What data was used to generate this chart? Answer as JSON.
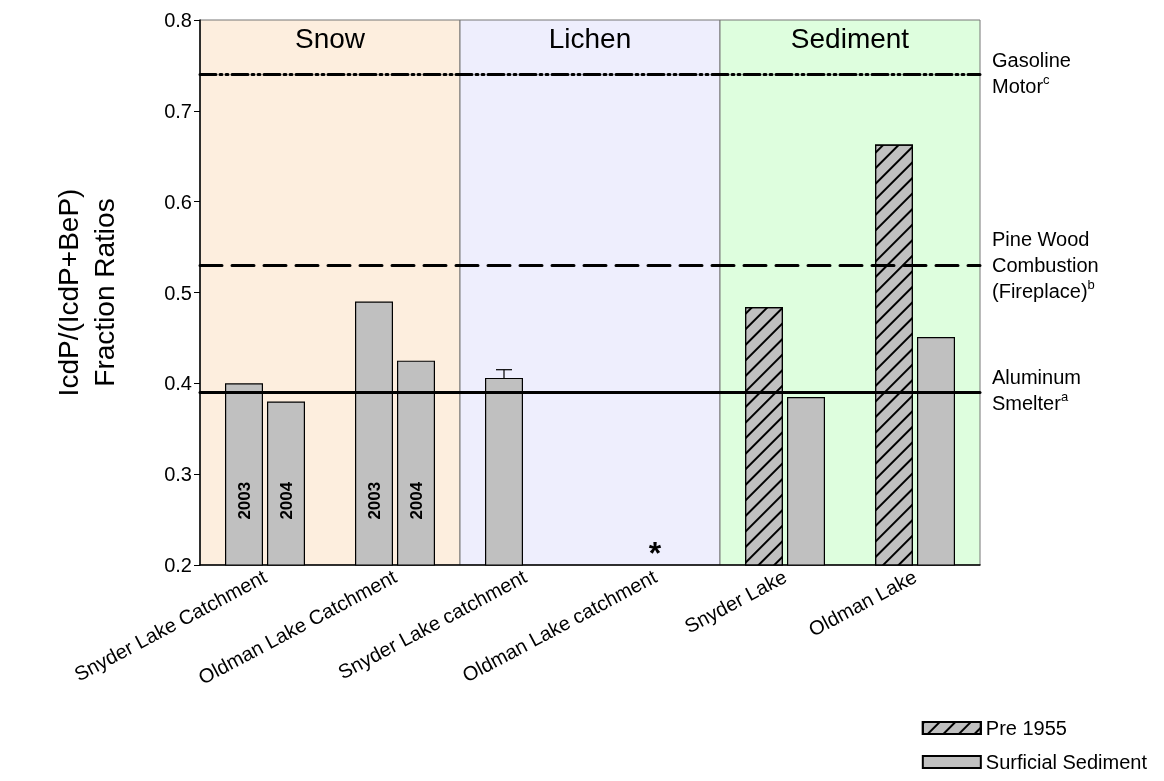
{
  "chart_data": {
    "type": "bar",
    "ylabel": "IcdP/(IcdP+BeP)\nFraction Ratios",
    "categories": [
      "Snyder Lake Catchment",
      "Oldman Lake Catchment",
      "Snyder Lake catchment",
      "Oldman Lake catchment",
      "Snyder Lake",
      "Oldman Lake"
    ],
    "series": [
      {
        "name": "2003",
        "color": "#c0c0c0",
        "values": [
          0.4,
          0.49,
          null,
          null,
          null,
          null
        ]
      },
      {
        "name": "2004",
        "color": "#c0c0c0",
        "values": [
          0.38,
          0.425,
          null,
          null,
          null,
          null
        ]
      },
      {
        "color": "#c0c0c0",
        "values": [
          null,
          null,
          0.406,
          null,
          null,
          null
        ],
        "errors": [
          null,
          null,
          [
            0.406,
            0.415
          ],
          null,
          null,
          null
        ]
      },
      {
        "name": "Pre 1955",
        "color": "#c0c0c0",
        "values": [
          null,
          null,
          null,
          null,
          0.484,
          0.663
        ]
      },
      {
        "name": "Surficial Sediment",
        "color": "#c0c0c0",
        "values": [
          null,
          null,
          null,
          null,
          0.385,
          0.451
        ]
      }
    ],
    "ylim": [
      0.2,
      0.8
    ],
    "yticks": [
      0.2,
      0.3,
      0.4,
      0.5,
      0.6,
      0.7,
      0.8
    ],
    "bands": [
      {
        "axis": "x",
        "from": "Snyder Lake Catchment",
        "to": "Oldman Lake Catchment",
        "label": "Snow",
        "color": "#fdeede"
      },
      {
        "axis": "x",
        "from": "Snyder Lake catchment",
        "to": "Oldman Lake catchment",
        "label": "Lichen",
        "color": "#eeeefd"
      },
      {
        "axis": "x",
        "from": "Snyder Lake",
        "to": "Oldman Lake",
        "label": "Sediment",
        "color": "#defede"
      }
    ],
    "ref_lines": [
      {
        "axis": "y",
        "value": 0.74,
        "label": "Gasoline Motor$^{c}$",
        "line_style": "dashdot",
        "color": "#000000"
      },
      {
        "axis": "y",
        "value": 0.53,
        "label": "Pine Wood Combustion (Fireplace)$^{b}$",
        "line_style": "dashed",
        "color": "#000000"
      },
      {
        "axis": "y",
        "value": 0.39,
        "label": "Aluminum Smelter$^{a}$",
        "line_style": "solid",
        "color": "#000000"
      }
    ],
    "annotations": [
      {
        "text": "*",
        "x": "Oldman Lake catchment",
        "y": 0.2
      }
    ],
    "grid": false,
    "legend": "bottom right"
  }
}
